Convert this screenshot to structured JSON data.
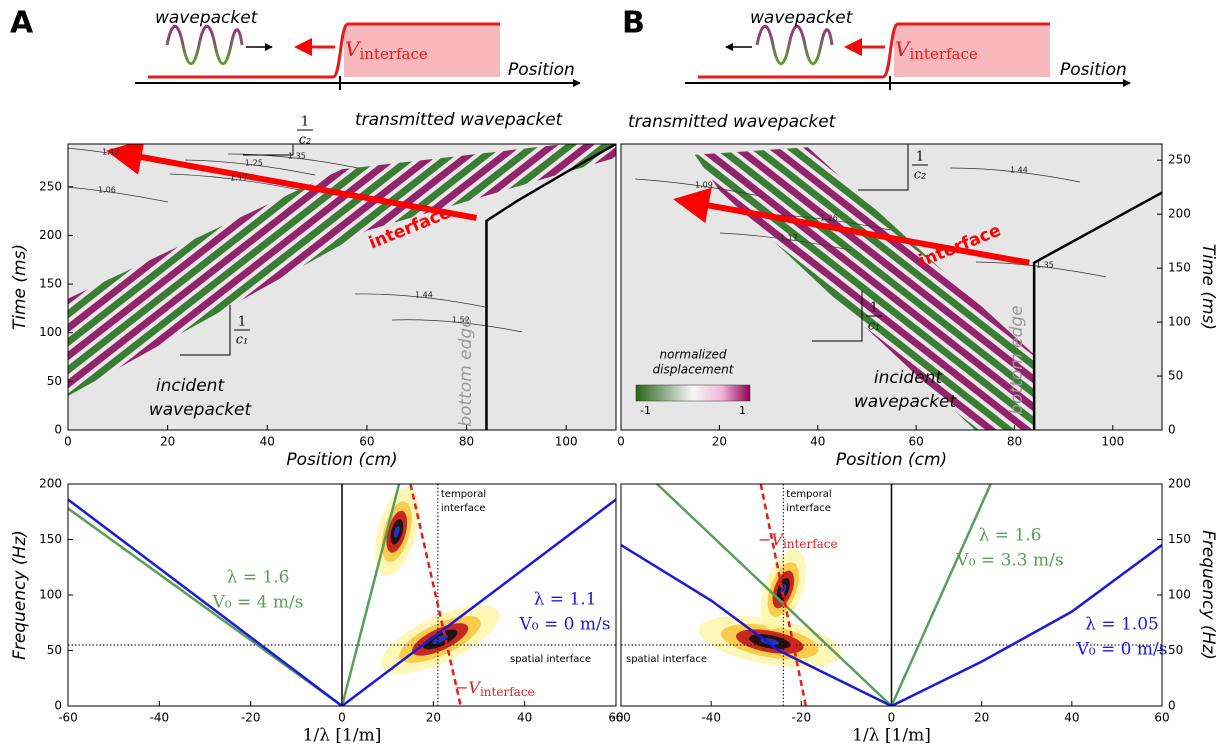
{
  "panel_labels": [
    "A",
    "B"
  ],
  "schematics": [
    {
      "wavepacket": "wavepacket",
      "label": "V",
      "label_sub": "interface",
      "axis": "Position"
    },
    {
      "wavepacket": "wavepacket",
      "label": "V",
      "label_sub": "interface",
      "axis": "Position"
    }
  ],
  "chart_data": [
    {
      "type": "line",
      "xlabel": "Position (cm)",
      "ylabel": "Time (ms)",
      "yaxis": "left",
      "xlim": [
        0,
        110
      ],
      "ylim": [
        0,
        294
      ],
      "xticks": [
        0,
        20,
        40,
        60,
        80,
        100
      ],
      "yticks": [
        0,
        50,
        100,
        150,
        200,
        250
      ],
      "series": [
        {
          "name": "interface",
          "color": "#ff0000",
          "arrow": true,
          "x": [
            82,
            10
          ],
          "values": [
            218,
            285
          ]
        },
        {
          "name": "bottom edge",
          "color": "#000000",
          "x": [
            84,
            84,
            90,
            100,
            110
          ],
          "values": [
            0,
            215,
            235,
            265,
            294
          ]
        }
      ],
      "annotations": [
        "transmitted wavepacket",
        "incident",
        "wavepacket"
      ],
      "slopes": [
        {
          "num": "1",
          "den": "c₂"
        },
        {
          "num": "1",
          "den": "c₁"
        }
      ],
      "contour_labels": [
        "1.12",
        "1.06",
        "1.17",
        "1.25",
        "1.35",
        "1.44",
        "1.52"
      ]
    },
    {
      "type": "line",
      "xlabel": "Position (cm)",
      "ylabel": "Time (ms)",
      "yaxis": "right",
      "xlim": [
        0,
        110
      ],
      "ylim": [
        0,
        265
      ],
      "xticks": [
        0,
        20,
        40,
        60,
        80,
        100
      ],
      "yticks": [
        0,
        50,
        100,
        150,
        200,
        250
      ],
      "series": [
        {
          "name": "interface",
          "color": "#ff0000",
          "arrow": true,
          "x": [
            83,
            13
          ],
          "values": [
            155,
            212
          ]
        },
        {
          "name": "bottom edge",
          "color": "#000000",
          "x": [
            84,
            84,
            92,
            100,
            110
          ],
          "values": [
            0,
            155,
            175,
            195,
            220
          ]
        }
      ],
      "annotations": [
        "transmitted wavepacket",
        "incident",
        "wavepacket"
      ],
      "slopes": [
        {
          "num": "1",
          "den": "c₂"
        },
        {
          "num": "1",
          "den": "c₁"
        }
      ],
      "contour_labels": [
        "1.09",
        "1.17",
        "1.26",
        "1.35",
        "1.44"
      ],
      "colorbar": {
        "label": "normalized",
        "label2": "displacement",
        "ticks": [
          -1,
          1
        ]
      }
    },
    {
      "type": "line",
      "xlabel": "1/λ [1/m]",
      "ylabel": "Frequency (Hz)",
      "yaxis": "left",
      "xlim": [
        -60,
        60
      ],
      "ylim": [
        0,
        200
      ],
      "xticks": [
        -60,
        -40,
        -20,
        0,
        20,
        40,
        60
      ],
      "yticks": [
        0,
        50,
        100,
        150,
        200
      ],
      "series": [
        {
          "name": "λ = 1.6",
          "note": "V₀ = 4 m/s",
          "color": "#5a9e5a",
          "x": [
            -60,
            0,
            12.5
          ],
          "values": [
            178,
            0,
            200
          ]
        },
        {
          "name": "λ = 1.1",
          "note": "V₀ = 0 m/s",
          "color": "#1a1adc",
          "x": [
            -60,
            0,
            60
          ],
          "values": [
            186,
            0,
            186
          ]
        },
        {
          "name": "−V",
          "name_sub": "interface",
          "color": "#e0201c",
          "style": "dashed",
          "x": [
            15,
            26
          ],
          "values": [
            200,
            0
          ]
        }
      ],
      "temporal_interface": {
        "label": "temporal",
        "label2": "interface",
        "x": 21
      },
      "spatial_interface": {
        "label": "spatial interface",
        "y": 55
      }
    },
    {
      "type": "line",
      "xlabel": "1/λ [1/m]",
      "ylabel": "Frequency (Hz)",
      "yaxis": "right",
      "xlim": [
        -60,
        60
      ],
      "ylim": [
        0,
        200
      ],
      "xticks": [
        -60,
        -40,
        -20,
        0,
        20,
        40,
        60
      ],
      "yticks": [
        0,
        50,
        100,
        150,
        200
      ],
      "series": [
        {
          "name": "λ = 1.6",
          "note": "V₀ = 3.3 m/s",
          "color": "#5a9e5a",
          "x": [
            -52,
            0,
            22
          ],
          "values": [
            200,
            0,
            200
          ]
        },
        {
          "name": "λ = 1.05",
          "note": "V₀ = 0 m/s",
          "color": "#1a1adc",
          "x": [
            -60,
            -40,
            -25,
            0,
            20,
            40,
            60
          ],
          "values": [
            145,
            95,
            50,
            0,
            40,
            85,
            145
          ]
        },
        {
          "name": "−V",
          "name_sub": "interface",
          "color": "#e0201c",
          "style": "dashed",
          "x": [
            -29,
            -19
          ],
          "values": [
            200,
            0
          ]
        }
      ],
      "temporal_interface": {
        "label": "temporal",
        "label2": "interface",
        "x": -24
      },
      "spatial_interface": {
        "label": "spatial interface",
        "y": 55
      }
    }
  ]
}
